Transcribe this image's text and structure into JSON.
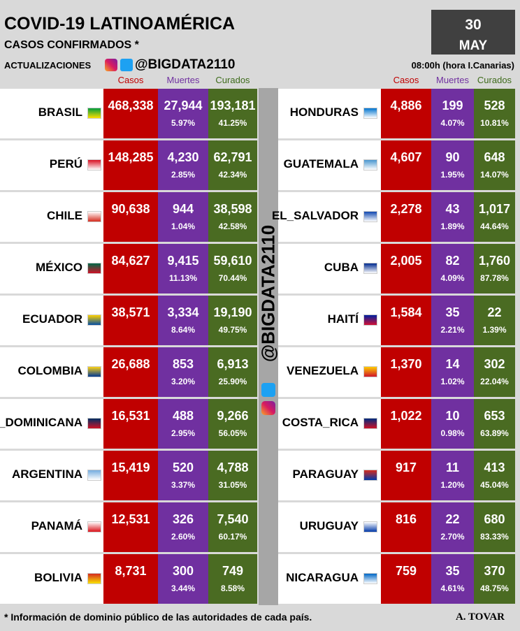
{
  "header": {
    "title": "COVID-19 LATINOAMÉRICA",
    "subtitle": "CASOS CONFIRMADOS *",
    "updates": "ACTUALIZACIONES",
    "handle": "@BIGDATA2110",
    "day": "30",
    "month": "MAY",
    "time": "08:00h (hora I.Canarias)"
  },
  "columns": [
    "Casos",
    "Muertes",
    "Curados"
  ],
  "left_rows": [
    [
      "BRASIL",
      "468,338",
      "27,944",
      "5.97%",
      "193,181",
      "41.25%"
    ],
    [
      "PERÚ",
      "148,285",
      "4,230",
      "2.85%",
      "62,791",
      "42.34%"
    ],
    [
      "CHILE",
      "90,638",
      "944",
      "1.04%",
      "38,598",
      "42.58%"
    ],
    [
      "MÉXICO",
      "84,627",
      "9,415",
      "11.13%",
      "59,610",
      "70.44%"
    ],
    [
      "ECUADOR",
      "38,571",
      "3,334",
      "8.64%",
      "19,190",
      "49.75%"
    ],
    [
      "COLOMBIA",
      "26,688",
      "853",
      "3.20%",
      "6,913",
      "25.90%"
    ],
    [
      "R_DOMINICANA",
      "16,531",
      "488",
      "2.95%",
      "9,266",
      "56.05%"
    ],
    [
      "ARGENTINA",
      "15,419",
      "520",
      "3.37%",
      "4,788",
      "31.05%"
    ],
    [
      "PANAMÁ",
      "12,531",
      "326",
      "2.60%",
      "7,540",
      "60.17%"
    ],
    [
      "BOLIVIA",
      "8,731",
      "300",
      "3.44%",
      "749",
      "8.58%"
    ]
  ],
  "right_rows": [
    [
      "HONDURAS",
      "4,886",
      "199",
      "4.07%",
      "528",
      "10.81%"
    ],
    [
      "GUATEMALA",
      "4,607",
      "90",
      "1.95%",
      "648",
      "14.07%"
    ],
    [
      "EL_SALVADOR",
      "2,278",
      "43",
      "1.89%",
      "1,017",
      "44.64%"
    ],
    [
      "CUBA",
      "2,005",
      "82",
      "4.09%",
      "1,760",
      "87.78%"
    ],
    [
      "HAITÍ",
      "1,584",
      "35",
      "2.21%",
      "22",
      "1.39%"
    ],
    [
      "VENEZUELA",
      "1,370",
      "14",
      "1.02%",
      "302",
      "22.04%"
    ],
    [
      "COSTA_RICA",
      "1,022",
      "10",
      "0.98%",
      "653",
      "63.89%"
    ],
    [
      "PARAGUAY",
      "917",
      "11",
      "1.20%",
      "413",
      "45.04%"
    ],
    [
      "URUGUAY",
      "816",
      "22",
      "2.70%",
      "680",
      "83.33%"
    ],
    [
      "NICARAGUA",
      "759",
      "35",
      "4.61%",
      "370",
      "48.75%"
    ]
  ],
  "footer": {
    "note": "* Información de dominio público de las autoridades de cada país.",
    "author": "A. TOVAR"
  }
}
